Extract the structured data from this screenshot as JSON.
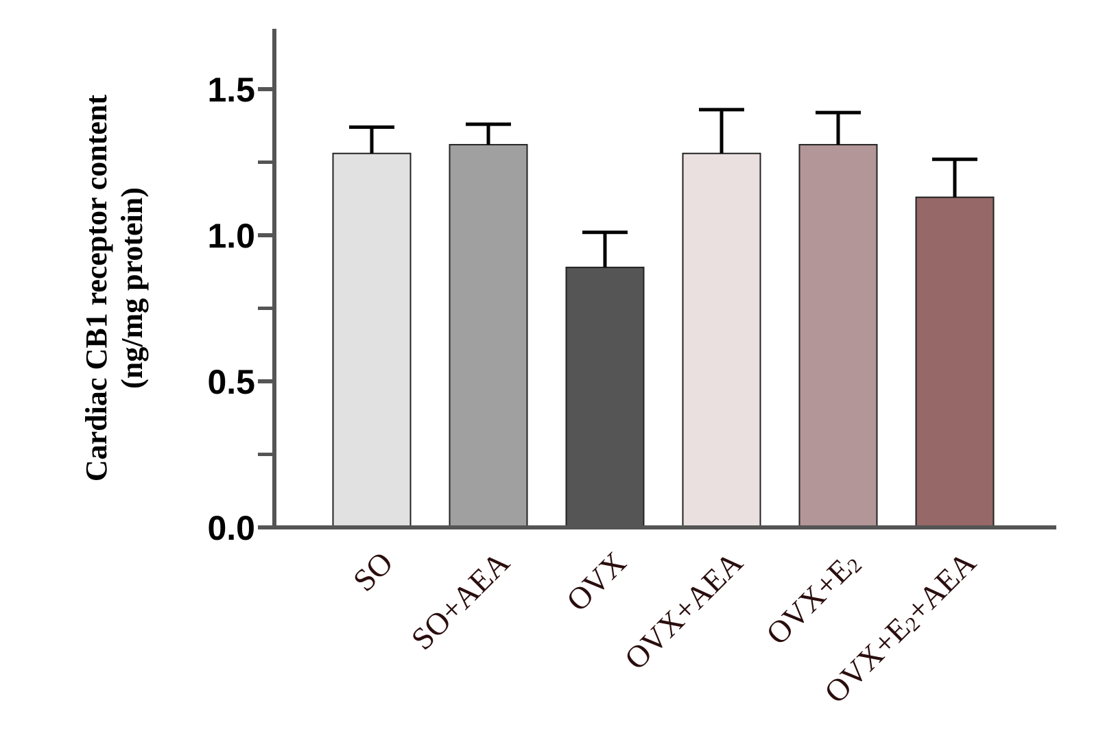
{
  "chart_data": {
    "type": "bar",
    "title": "",
    "xlabel": "",
    "ylabel_lines": [
      "Cardiac CB1 receptor content",
      "(ng/mg protein)"
    ],
    "ylim": [
      0,
      1.7
    ],
    "yticks": [
      0.0,
      0.5,
      1.0,
      1.5
    ],
    "yticks_labels": [
      "0.0",
      "0.5",
      "1.0",
      "1.5"
    ],
    "yminor_ticks": [
      0.25,
      0.75,
      1.25
    ],
    "grid": false,
    "categories": [
      {
        "parts": [
          {
            "t": "SO"
          }
        ]
      },
      {
        "parts": [
          {
            "t": "SO+AEA"
          }
        ]
      },
      {
        "parts": [
          {
            "t": "OVX"
          }
        ]
      },
      {
        "parts": [
          {
            "t": "OVX+AEA"
          }
        ]
      },
      {
        "parts": [
          {
            "t": "OVX+E"
          },
          {
            "t": "2",
            "sub": true
          }
        ]
      },
      {
        "parts": [
          {
            "t": "OVX+E"
          },
          {
            "t": "2",
            "sub": true
          },
          {
            "t": "+AEA"
          }
        ]
      }
    ],
    "values": [
      1.28,
      1.31,
      0.89,
      1.28,
      1.31,
      1.13
    ],
    "errors": [
      0.09,
      0.07,
      0.12,
      0.15,
      0.11,
      0.13
    ],
    "colors": [
      "#e1e1e1",
      "#a0a0a0",
      "#555555",
      "#ebe0e0",
      "#b39698",
      "#966868"
    ],
    "axis_color": "#555555"
  }
}
